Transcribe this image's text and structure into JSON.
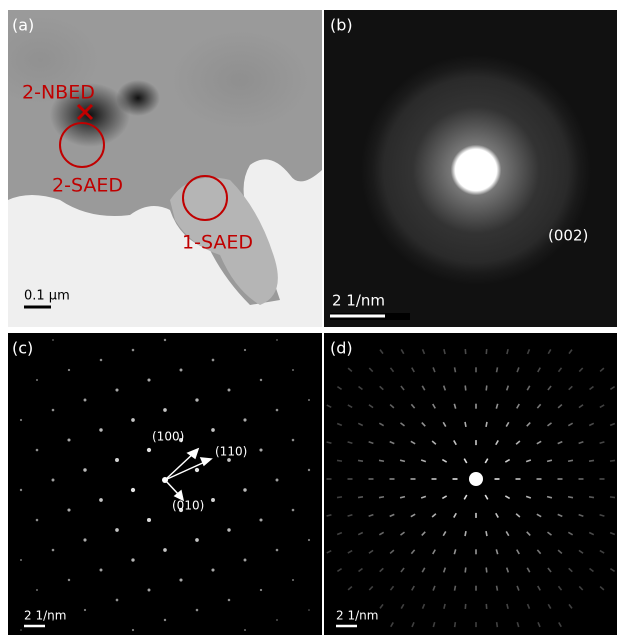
{
  "panels": [
    {
      "label": "(a)",
      "annotations": [
        "2-NBED",
        "2-SAED",
        "1-SAED"
      ],
      "scale_bar": "0.1 μm"
    },
    {
      "label": "(b)",
      "annotations": [
        "(002)"
      ],
      "scale_bar": "2 1/nm"
    },
    {
      "label": "(c)",
      "annotations": [
        "(100)",
        "(110)",
        "(010)"
      ],
      "scale_bar": "2 1/nm"
    },
    {
      "label": "(d)",
      "annotations": [],
      "scale_bar": "2 1/nm"
    }
  ]
}
